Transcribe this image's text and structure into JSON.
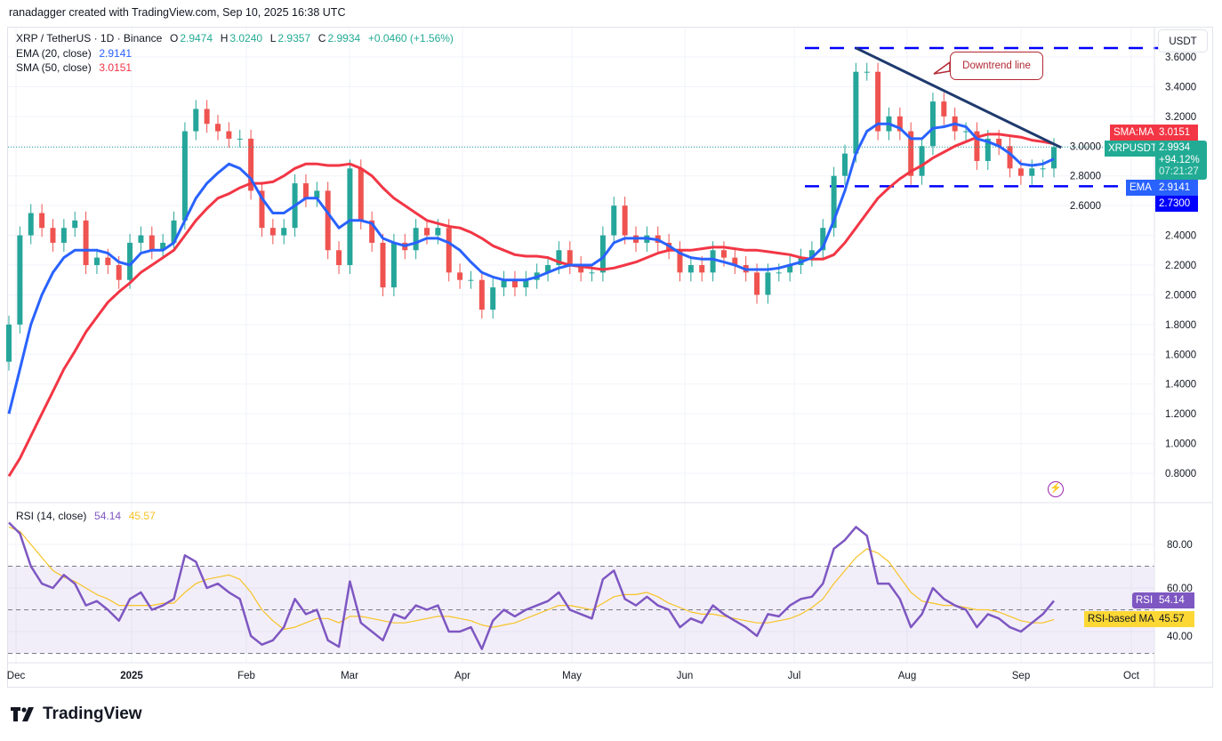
{
  "credit": "ranadagger created with TradingView.com, Sep 10, 2025 16:38 UTC",
  "legend": {
    "symbol": "XRP / TetherUS · 1D · Binance",
    "o_label": "O",
    "o": "2.9474",
    "h_label": "H",
    "h": "3.0240",
    "l_label": "L",
    "l": "2.9357",
    "c_label": "C",
    "c": "2.9934",
    "change": "+0.0460 (+1.56%)",
    "ema_label": "EMA (20, close)",
    "ema": "2.9141",
    "sma_label": "SMA (50, close)",
    "sma": "3.0151",
    "rsi_label": "RSI (14, close)",
    "rsi": "54.14",
    "rsi_ma": "45.57"
  },
  "currency_button": "USDT",
  "annotation": "Downtrend line",
  "price_tags": {
    "sma_name": "SMA:MA",
    "sma_value": "3.0151",
    "symbol_name": "XRPUSDT",
    "last_price": "2.9934",
    "last_change": "+94.12%",
    "countdown": "07:21:27",
    "ema_name": "EMA",
    "ema_value": "2.9141",
    "support_value": "2.7300",
    "rsi_name": "RSI",
    "rsi_value": "54.14",
    "rsi_ma_name": "RSI-based MA",
    "rsi_ma_value": "45.57"
  },
  "logo_text": "TradingView",
  "colors": {
    "up": "#26a69a",
    "down": "#ef5350",
    "ema": "#2962ff",
    "sma": "#f23645",
    "rsi": "#7e57c2",
    "rsi_ma": "#f7c325",
    "levels": "#0000ff",
    "trendline": "#1e3a6e"
  },
  "chart_data": [
    {
      "type": "candlestick",
      "x_range": [
        "2024-11-29",
        "2025-09-10"
      ],
      "interval_days": 3,
      "ylim": [
        0.7,
        3.7
      ],
      "y_ticks": [
        "3.6000",
        "3.4000",
        "3.2000",
        "3.0000",
        "2.8000",
        "2.6000",
        "2.4000",
        "2.2000",
        "2.0000",
        "1.8000",
        "1.6000",
        "1.4000",
        "1.2000",
        "1.0000",
        "0.8000"
      ],
      "x_ticks": [
        "Dec",
        "2025",
        "Feb",
        "Mar",
        "Apr",
        "May",
        "Jun",
        "Jul",
        "Aug",
        "Sep",
        "Oct"
      ],
      "grid": true,
      "closes": [
        1.8,
        2.4,
        2.55,
        2.45,
        2.35,
        2.45,
        2.5,
        2.2,
        2.25,
        2.2,
        2.1,
        2.35,
        2.4,
        2.3,
        2.35,
        2.5,
        3.1,
        3.25,
        3.15,
        3.1,
        3.05,
        3.05,
        2.7,
        2.45,
        2.4,
        2.45,
        2.75,
        2.65,
        2.7,
        2.3,
        2.2,
        2.85,
        2.5,
        2.35,
        2.05,
        2.35,
        2.3,
        2.45,
        2.4,
        2.45,
        2.15,
        2.1,
        2.1,
        1.9,
        2.05,
        2.1,
        2.05,
        2.1,
        2.15,
        2.2,
        2.3,
        2.2,
        2.15,
        2.15,
        2.4,
        2.6,
        2.4,
        2.35,
        2.4,
        2.35,
        2.3,
        2.15,
        2.2,
        2.15,
        2.3,
        2.25,
        2.2,
        2.15,
        2.0,
        2.15,
        2.15,
        2.2,
        2.25,
        2.3,
        2.45,
        2.8,
        2.95,
        3.5,
        3.5,
        3.1,
        3.2,
        3.1,
        2.8,
        3.0,
        3.3,
        3.2,
        3.1,
        3.1,
        2.9,
        3.05,
        3.0,
        2.85,
        2.8,
        2.85,
        2.85,
        2.9934
      ],
      "series": [
        {
          "name": "EMA (20, close)",
          "values": [
            1.2,
            1.5,
            1.8,
            2.0,
            2.15,
            2.25,
            2.3,
            2.3,
            2.3,
            2.28,
            2.22,
            2.2,
            2.28,
            2.3,
            2.3,
            2.35,
            2.5,
            2.65,
            2.75,
            2.82,
            2.88,
            2.85,
            2.78,
            2.65,
            2.55,
            2.55,
            2.6,
            2.65,
            2.65,
            2.55,
            2.45,
            2.5,
            2.5,
            2.48,
            2.38,
            2.35,
            2.33,
            2.35,
            2.38,
            2.38,
            2.35,
            2.3,
            2.22,
            2.15,
            2.12,
            2.1,
            2.1,
            2.1,
            2.12,
            2.15,
            2.18,
            2.2,
            2.2,
            2.2,
            2.25,
            2.35,
            2.38,
            2.38,
            2.38,
            2.37,
            2.33,
            2.28,
            2.25,
            2.24,
            2.24,
            2.22,
            2.2,
            2.17,
            2.17,
            2.17,
            2.18,
            2.2,
            2.22,
            2.25,
            2.32,
            2.5,
            2.7,
            2.95,
            3.1,
            3.15,
            3.15,
            3.12,
            3.05,
            3.05,
            3.12,
            3.13,
            3.15,
            3.13,
            3.05,
            3.03,
            3.0,
            2.95,
            2.88,
            2.87,
            2.88,
            2.9141
          ]
        },
        {
          "name": "SMA (50, close)",
          "values": [
            0.78,
            0.9,
            1.05,
            1.2,
            1.35,
            1.5,
            1.62,
            1.75,
            1.85,
            1.95,
            2.02,
            2.08,
            2.15,
            2.2,
            2.25,
            2.3,
            2.4,
            2.5,
            2.58,
            2.65,
            2.68,
            2.72,
            2.75,
            2.75,
            2.76,
            2.8,
            2.85,
            2.88,
            2.88,
            2.87,
            2.87,
            2.88,
            2.85,
            2.8,
            2.72,
            2.65,
            2.6,
            2.55,
            2.5,
            2.48,
            2.46,
            2.45,
            2.42,
            2.38,
            2.33,
            2.3,
            2.27,
            2.26,
            2.26,
            2.25,
            2.22,
            2.2,
            2.19,
            2.18,
            2.17,
            2.18,
            2.2,
            2.22,
            2.25,
            2.28,
            2.3,
            2.3,
            2.3,
            2.31,
            2.32,
            2.32,
            2.31,
            2.3,
            2.3,
            2.29,
            2.28,
            2.27,
            2.25,
            2.24,
            2.24,
            2.27,
            2.35,
            2.45,
            2.55,
            2.65,
            2.72,
            2.78,
            2.83,
            2.87,
            2.92,
            2.96,
            3.0,
            3.03,
            3.06,
            3.08,
            3.08,
            3.07,
            3.06,
            3.04,
            3.03,
            3.0151
          ]
        }
      ],
      "levels": [
        3.66,
        2.73
      ],
      "trendline": {
        "from_date": "2025-07-18",
        "from_price": 3.66,
        "to_date": "2025-09-12",
        "to_price": 2.99
      }
    },
    {
      "type": "line",
      "title": "RSI (14, close)",
      "ylim": [
        25,
        95
      ],
      "y_ticks": [
        "80.00",
        "60.00",
        "40.00"
      ],
      "band": [
        30,
        70
      ],
      "midline": 50,
      "series": [
        {
          "name": "RSI",
          "values": [
            90,
            85,
            70,
            62,
            60,
            66,
            62,
            52,
            54,
            50,
            45,
            55,
            58,
            50,
            52,
            55,
            75,
            72,
            60,
            62,
            58,
            55,
            38,
            34,
            36,
            42,
            55,
            48,
            50,
            36,
            33,
            63,
            44,
            40,
            36,
            48,
            46,
            52,
            50,
            52,
            40,
            40,
            42,
            32,
            45,
            50,
            47,
            50,
            52,
            54,
            58,
            50,
            48,
            46,
            64,
            68,
            55,
            52,
            56,
            52,
            50,
            42,
            46,
            44,
            52,
            48,
            45,
            42,
            38,
            48,
            47,
            52,
            55,
            56,
            62,
            78,
            82,
            88,
            84,
            62,
            62,
            55,
            42,
            48,
            60,
            55,
            52,
            50,
            42,
            48,
            46,
            42,
            40,
            44,
            48,
            54.14
          ]
        },
        {
          "name": "RSI-based MA",
          "values": [
            88,
            86,
            80,
            74,
            68,
            65,
            63,
            60,
            57,
            55,
            52,
            52,
            52,
            52,
            53,
            53,
            58,
            62,
            64,
            65,
            66,
            64,
            58,
            50,
            45,
            41,
            42,
            44,
            46,
            46,
            44,
            47,
            47,
            46,
            45,
            44,
            44,
            45,
            46,
            47,
            47,
            46,
            45,
            43,
            42,
            43,
            44,
            46,
            48,
            50,
            52,
            52,
            51,
            50,
            53,
            56,
            57,
            57,
            58,
            56,
            53,
            51,
            49,
            48,
            48,
            47,
            46,
            45,
            44,
            44,
            45,
            46,
            48,
            51,
            55,
            62,
            68,
            74,
            78,
            76,
            72,
            65,
            58,
            54,
            53,
            52,
            52,
            51,
            50,
            50,
            49,
            47,
            45,
            44,
            44,
            45.57
          ]
        }
      ]
    }
  ]
}
